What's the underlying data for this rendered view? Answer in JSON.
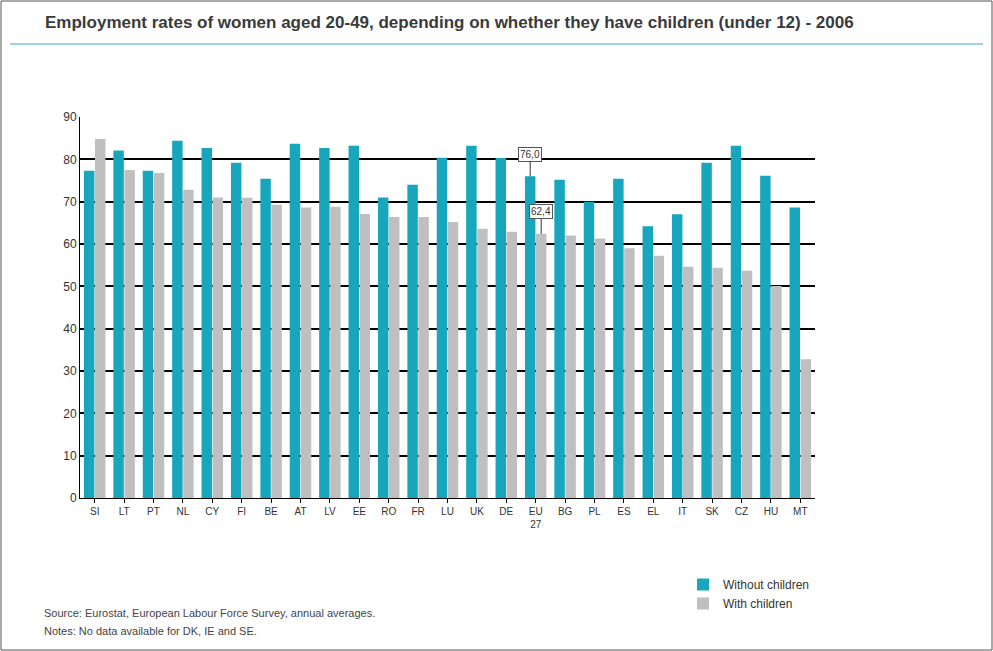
{
  "chart_data": {
    "type": "bar",
    "title": "Employment rates of women aged 20-49, depending on whether they have children (under 12) - 2006",
    "categories": [
      "SI",
      "LT",
      "PT",
      "NL",
      "CY",
      "FI",
      "BE",
      "AT",
      "LV",
      "EE",
      "RO",
      "FR",
      "LU",
      "UK",
      "DE",
      "EU\n27",
      "BG",
      "PL",
      "ES",
      "EL",
      "IT",
      "SK",
      "CZ",
      "HU",
      "MT"
    ],
    "series": [
      {
        "name": "Without children",
        "color": "#17a6bc",
        "values": [
          77.3,
          82.1,
          77.3,
          84.4,
          82.7,
          79.2,
          75.4,
          83.7,
          82.7,
          83.2,
          71.0,
          74.0,
          80.4,
          83.2,
          80.3,
          76.0,
          75.2,
          70.0,
          75.4,
          64.2,
          67.0,
          79.2,
          83.2,
          76.1,
          68.6
        ]
      },
      {
        "name": "With children",
        "color": "#bfbfbf",
        "values": [
          84.8,
          77.5,
          76.8,
          72.8,
          71.0,
          70.9,
          69.3,
          68.6,
          68.8,
          67.1,
          66.4,
          66.4,
          65.2,
          63.6,
          62.9,
          62.4,
          62.0,
          61.3,
          59.0,
          57.2,
          54.6,
          54.4,
          53.7,
          50.1,
          32.8
        ]
      }
    ],
    "ylim": [
      0,
      90
    ],
    "yticks": [
      0,
      10,
      20,
      30,
      40,
      50,
      60,
      70,
      80,
      90
    ],
    "grid": true,
    "legend": "bottom-right",
    "annotations": [
      {
        "text": "76,0",
        "category": "EU\n27",
        "series": "Without children",
        "y": 76.0
      },
      {
        "text": "62,4",
        "category": "EU\n27",
        "series": "With children",
        "y": 62.4
      }
    ],
    "footnotes": [
      "Source: Eurostat, European Labour Force Survey, annual averages.",
      "Notes: No data available for DK, IE and SE."
    ]
  }
}
